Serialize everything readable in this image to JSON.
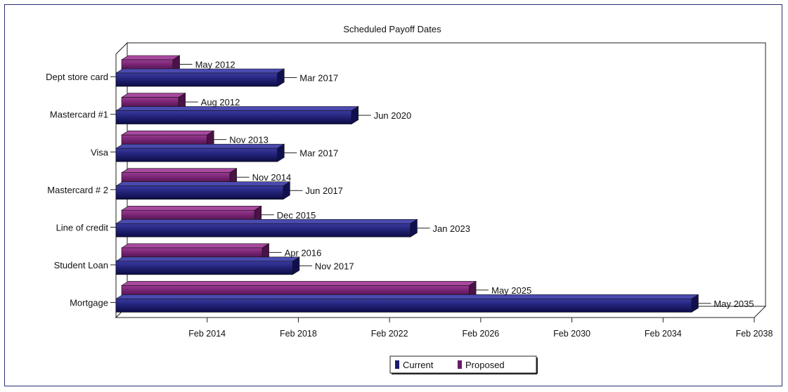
{
  "chart_data": {
    "type": "bar",
    "orientation": "horizontal",
    "title": "Scheduled Payoff Dates",
    "x_axis": {
      "type": "date",
      "min": "2010-02",
      "max": "2038-02",
      "ticks": [
        {
          "value": "2014-02",
          "label": "Feb 2014"
        },
        {
          "value": "2018-02",
          "label": "Feb 2018"
        },
        {
          "value": "2022-02",
          "label": "Feb 2022"
        },
        {
          "value": "2026-02",
          "label": "Feb 2026"
        },
        {
          "value": "2030-02",
          "label": "Feb 2030"
        },
        {
          "value": "2034-02",
          "label": "Feb 2034"
        },
        {
          "value": "2038-02",
          "label": "Feb 2038"
        }
      ]
    },
    "categories": [
      "Dept store card",
      "Mastercard #1",
      "Visa",
      "Mastercard # 2",
      "Line of credit",
      "Student Loan",
      "Mortgage"
    ],
    "series": [
      {
        "name": "Current",
        "color": "#1c1c6e",
        "values": [
          "2017-03",
          "2020-06",
          "2017-03",
          "2017-06",
          "2023-01",
          "2017-11",
          "2035-05"
        ],
        "labels": [
          "Mar 2017",
          "Jun 2020",
          "Mar 2017",
          "Jun 2017",
          "Jan 2023",
          "Nov 2017",
          "May 2035"
        ]
      },
      {
        "name": "Proposed",
        "color": "#6b1a66",
        "values": [
          "2012-05",
          "2012-08",
          "2013-11",
          "2014-11",
          "2015-12",
          "2016-04",
          "2025-05"
        ],
        "labels": [
          "May 2012",
          "Aug 2012",
          "Nov 2013",
          "Nov 2014",
          "Dec 2015",
          "Apr 2016",
          "May 2025"
        ]
      }
    ],
    "legend": {
      "position": "bottom-center",
      "entries": [
        "Current",
        "Proposed"
      ]
    },
    "grid": false,
    "style": "3d"
  }
}
